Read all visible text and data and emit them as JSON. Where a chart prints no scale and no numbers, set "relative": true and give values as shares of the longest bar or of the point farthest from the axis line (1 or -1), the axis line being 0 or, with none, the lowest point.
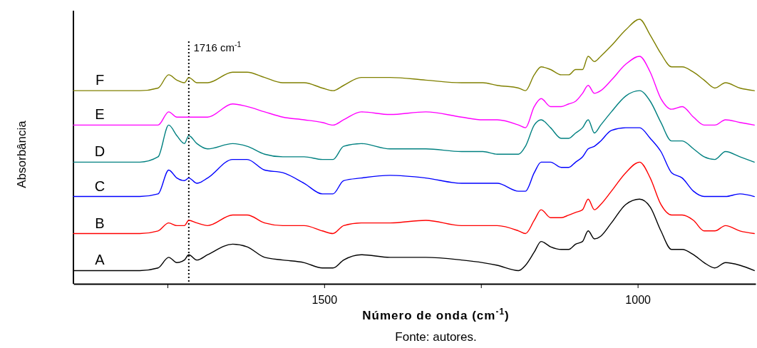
{
  "chart_data": {
    "type": "line",
    "relative": true,
    "xlabel": "Número de onda (cm$^{-1}$)",
    "ylabel": "Absorbância",
    "annotations": [
      "Fonte: autores."
    ],
    "x": [
      1900,
      1851,
      1794,
      1765,
      1748,
      1735,
      1723,
      1716,
      1703,
      1686,
      1646,
      1623,
      1595,
      1566,
      1532,
      1503,
      1486,
      1469,
      1441,
      1395,
      1338,
      1281,
      1247,
      1224,
      1190,
      1179,
      1165,
      1154,
      1139,
      1122,
      1110,
      1099,
      1088,
      1079,
      1069,
      1059,
      1042,
      1019,
      997,
      980,
      963,
      946,
      929,
      911,
      894,
      877,
      860,
      837,
      814
    ],
    "xlim": [
      1900,
      812
    ],
    "xticks": [
      {
        "value": 1750,
        "label": null
      },
      1500,
      {
        "value": 1250,
        "label": null
      },
      1000
    ],
    "tick_labels": "x",
    "grid": false,
    "legend": false,
    "marker": "none",
    "line_style": "solid",
    "ref_lines": [
      {
        "axis": "x",
        "value": 1716,
        "label": "1716 cm$^{-1}$",
        "color": "#000000",
        "line_style": "dotted"
      }
    ],
    "series": [
      {
        "name": "A",
        "color": "#000000",
        "values": [
          0.05,
          0.05,
          0.05,
          0.06,
          0.1,
          0.08,
          0.09,
          0.11,
          0.09,
          0.11,
          0.15,
          0.14,
          0.1,
          0.09,
          0.08,
          0.06,
          0.06,
          0.09,
          0.11,
          0.1,
          0.1,
          0.09,
          0.08,
          0.07,
          0.05,
          0.07,
          0.12,
          0.16,
          0.14,
          0.13,
          0.13,
          0.15,
          0.16,
          0.2,
          0.17,
          0.18,
          0.23,
          0.3,
          0.32,
          0.29,
          0.2,
          0.13,
          0.13,
          0.11,
          0.08,
          0.06,
          0.08,
          0.07,
          0.05
        ]
      },
      {
        "name": "B",
        "color": "#ff0000",
        "values": [
          0.19,
          0.19,
          0.19,
          0.2,
          0.23,
          0.22,
          0.22,
          0.24,
          0.23,
          0.22,
          0.26,
          0.26,
          0.23,
          0.22,
          0.22,
          0.2,
          0.19,
          0.22,
          0.23,
          0.23,
          0.24,
          0.22,
          0.22,
          0.22,
          0.2,
          0.19,
          0.24,
          0.28,
          0.25,
          0.25,
          0.26,
          0.27,
          0.28,
          0.32,
          0.28,
          0.3,
          0.35,
          0.42,
          0.46,
          0.4,
          0.3,
          0.26,
          0.26,
          0.24,
          0.2,
          0.2,
          0.22,
          0.2,
          0.19
        ]
      },
      {
        "name": "C",
        "color": "#0000ff",
        "values": [
          0.33,
          0.33,
          0.33,
          0.34,
          0.43,
          0.4,
          0.39,
          0.4,
          0.38,
          0.4,
          0.47,
          0.47,
          0.43,
          0.42,
          0.38,
          0.34,
          0.34,
          0.39,
          0.4,
          0.41,
          0.4,
          0.38,
          0.38,
          0.38,
          0.35,
          0.35,
          0.42,
          0.46,
          0.46,
          0.44,
          0.44,
          0.46,
          0.48,
          0.51,
          0.52,
          0.54,
          0.58,
          0.59,
          0.59,
          0.55,
          0.5,
          0.42,
          0.4,
          0.35,
          0.33,
          0.33,
          0.33,
          0.34,
          0.33
        ]
      },
      {
        "name": "D",
        "color": "#008080",
        "values": [
          0.46,
          0.46,
          0.46,
          0.48,
          0.6,
          0.56,
          0.53,
          0.56,
          0.53,
          0.51,
          0.53,
          0.52,
          0.49,
          0.48,
          0.48,
          0.47,
          0.47,
          0.52,
          0.53,
          0.51,
          0.51,
          0.5,
          0.5,
          0.49,
          0.49,
          0.52,
          0.6,
          0.62,
          0.59,
          0.55,
          0.55,
          0.57,
          0.59,
          0.62,
          0.57,
          0.6,
          0.65,
          0.71,
          0.73,
          0.69,
          0.61,
          0.54,
          0.54,
          0.51,
          0.48,
          0.47,
          0.5,
          0.48,
          0.46
        ]
      },
      {
        "name": "E",
        "color": "#ff00ff",
        "values": [
          0.6,
          0.6,
          0.6,
          0.6,
          0.65,
          0.63,
          0.63,
          0.63,
          0.63,
          0.63,
          0.68,
          0.67,
          0.65,
          0.63,
          0.62,
          0.61,
          0.6,
          0.62,
          0.65,
          0.64,
          0.65,
          0.63,
          0.62,
          0.62,
          0.6,
          0.59,
          0.67,
          0.7,
          0.67,
          0.67,
          0.68,
          0.69,
          0.72,
          0.75,
          0.72,
          0.73,
          0.77,
          0.83,
          0.86,
          0.8,
          0.7,
          0.66,
          0.67,
          0.63,
          0.6,
          0.6,
          0.62,
          0.61,
          0.6
        ]
      },
      {
        "name": "F",
        "color": "#808000",
        "values": [
          0.73,
          0.73,
          0.73,
          0.74,
          0.79,
          0.77,
          0.76,
          0.78,
          0.76,
          0.76,
          0.8,
          0.8,
          0.78,
          0.76,
          0.76,
          0.74,
          0.73,
          0.75,
          0.78,
          0.78,
          0.77,
          0.76,
          0.76,
          0.75,
          0.74,
          0.73,
          0.79,
          0.82,
          0.81,
          0.79,
          0.79,
          0.81,
          0.81,
          0.86,
          0.84,
          0.86,
          0.9,
          0.96,
          1,
          0.94,
          0.87,
          0.82,
          0.82,
          0.8,
          0.77,
          0.74,
          0.76,
          0.74,
          0.73
        ]
      }
    ]
  }
}
